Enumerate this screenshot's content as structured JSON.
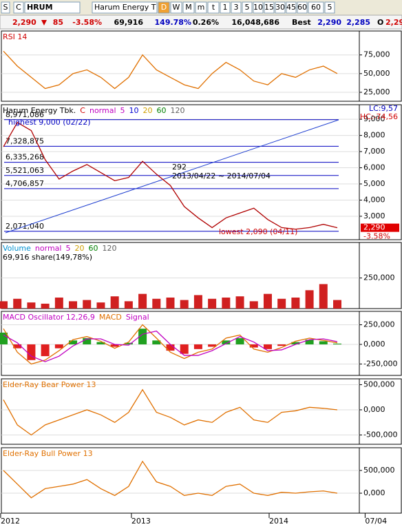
{
  "toolbar": {
    "prefix": "S",
    "market": "C",
    "symbol": "HRUM",
    "name": "Harum Energy T",
    "periods": [
      "D",
      "W",
      "M",
      "m",
      "t",
      "1",
      "3",
      "5",
      "10",
      "15",
      "30",
      "45",
      "60"
    ],
    "period_select": "60",
    "extra": "5"
  },
  "quote": {
    "price": "2,290",
    "change": "85",
    "change_pct": "-3.58%",
    "volume": "69,916",
    "volume_pct": "149.78%",
    "ratio": "0.26%",
    "amount": "16,048,686",
    "best_label": "Best",
    "bid": "2,290",
    "ask": "2,285",
    "open_label": "O",
    "open": "2,29"
  },
  "chart_data": {
    "type": "stock_panes",
    "x_ticks": [
      {
        "value": -0.2,
        "label": "2012"
      },
      {
        "value": 9.2,
        "label": "2013"
      },
      {
        "value": 19.1,
        "label": "2014"
      },
      {
        "value": 26,
        "label": "07/04"
      }
    ],
    "panes": [
      {
        "legend": [
          {
            "text": "RSI 14",
            "color": "#d00000"
          }
        ],
        "ylim": [
          13,
          107
        ],
        "yticks": [
          {
            "value": 75,
            "label": "75,000"
          },
          {
            "value": 50,
            "label": "50,000"
          },
          {
            "value": 25,
            "label": "25,000"
          }
        ],
        "series": [
          {
            "type": "line",
            "color": "#e07000",
            "values": [
              80,
              60,
              45,
              30,
              35,
              50,
              55,
              45,
              30,
              45,
              75,
              55,
              45,
              35,
              30,
              50,
              65,
              55,
              40,
              35,
              50,
              45,
              55,
              60,
              50
            ]
          }
        ]
      },
      {
        "legend": [
          {
            "text": "Harum Energy Tbk.",
            "color": "#000000"
          },
          {
            "text": "C",
            "color": "#d00000"
          },
          {
            "text": "normal",
            "color": "#c000c0"
          },
          {
            "text": "5",
            "color": "#c000c0"
          },
          {
            "text": "10",
            "color": "#0000d0"
          },
          {
            "text": "20",
            "color": "#d0a000"
          },
          {
            "text": "60",
            "color": "#008000"
          },
          {
            "text": "120",
            "color": "#606060"
          }
        ],
        "ylim": [
          1550,
          9900
        ],
        "yticks": [
          {
            "value": 9000,
            "label": "9,000"
          },
          {
            "value": 8000,
            "label": "8,000"
          },
          {
            "value": 7000,
            "label": "7,000"
          },
          {
            "value": 6000,
            "label": "6,000"
          },
          {
            "value": 5000,
            "label": "5,000"
          },
          {
            "value": 4000,
            "label": "4,000"
          },
          {
            "value": 3000,
            "label": "3,000"
          }
        ],
        "levels": [
          {
            "value": 8971.086,
            "label": "8,971,086"
          },
          {
            "value": 7328.875,
            "label": "7,328,875"
          },
          {
            "value": 6335.268,
            "label": "6,335,268"
          },
          {
            "value": 5521.063,
            "label": "5,521,063"
          },
          {
            "value": 4706.857,
            "label": "4,706,857"
          },
          {
            "value": 2071.04,
            "label": "2,071,040"
          }
        ],
        "annotations": [
          "highest 9,000 (02/22)",
          "lowest 2,090 (04/11)",
          "292",
          "2013/04/22 ~ 2014/07/04",
          "LC:9,57",
          "HC:-74,56"
        ],
        "last_tag": [
          "2,290",
          "-3.58%"
        ],
        "series": [
          {
            "type": "line",
            "color": "#b00000",
            "values": [
              7300,
              8800,
              8300,
              6500,
              5300,
              5800,
              6200,
              5700,
              5200,
              5400,
              6400,
              5600,
              4900,
              3600,
              2900,
              2300,
              2900,
              3200,
              3500,
              2800,
              2300,
              2200,
              2300,
              2500,
              2290
            ]
          }
        ]
      },
      {
        "legend": [
          {
            "text": "Volume",
            "color": "#0090d0"
          },
          {
            "text": "normal",
            "color": "#c000c0"
          },
          {
            "text": "5",
            "color": "#c000c0"
          },
          {
            "text": "20",
            "color": "#d0a000"
          },
          {
            "text": "60",
            "color": "#008000"
          },
          {
            "text": "120",
            "color": "#606060"
          }
        ],
        "sub": "69,916 share(149,78%)",
        "ylim": [
          0,
          540000
        ],
        "yticks": [
          {
            "value": 250000,
            "label": "250,000"
          }
        ],
        "series": [
          {
            "type": "bar",
            "color": "#d02020",
            "values": [
              60000,
              80000,
              50000,
              40000,
              90000,
              60000,
              70000,
              50000,
              100000,
              60000,
              120000,
              80000,
              90000,
              70000,
              110000,
              80000,
              90000,
              100000,
              60000,
              120000,
              80000,
              90000,
              150000,
              200000,
              69916
            ]
          }
        ]
      },
      {
        "legend": [
          {
            "text": "MACD Oscillator 12,26,9",
            "color": "#c000c0"
          },
          {
            "text": "MACD",
            "color": "#e07000"
          },
          {
            "text": "Signal",
            "color": "#c000c0"
          }
        ],
        "ylim": [
          -395000,
          421000
        ],
        "yticks": [
          {
            "value": 250000,
            "label": "250,000"
          },
          {
            "value": 0,
            "label": "0,000"
          },
          {
            "value": -250000,
            "label": "-250,000"
          }
        ],
        "series": [
          {
            "type": "signbar",
            "color": "#20a020",
            "neg_color": "#e02020",
            "values": [
              150000,
              -50000,
              -200000,
              -150000,
              -50000,
              50000,
              80000,
              30000,
              -30000,
              20000,
              200000,
              50000,
              -80000,
              -120000,
              -60000,
              -30000,
              50000,
              80000,
              -40000,
              -60000,
              -20000,
              30000,
              60000,
              40000,
              10000
            ]
          },
          {
            "type": "line",
            "color": "#e07000",
            "values": [
              200000,
              -100000,
              -250000,
              -200000,
              -80000,
              60000,
              100000,
              40000,
              -50000,
              30000,
              250000,
              80000,
              -100000,
              -180000,
              -100000,
              -60000,
              80000,
              120000,
              -60000,
              -100000,
              -40000,
              40000,
              80000,
              50000,
              20000
            ]
          },
          {
            "type": "line",
            "color": "#c000c0",
            "values": [
              120000,
              20000,
              -150000,
              -220000,
              -150000,
              -20000,
              70000,
              70000,
              0,
              -10000,
              130000,
              170000,
              0,
              -140000,
              -140000,
              -80000,
              10000,
              100000,
              30000,
              -80000,
              -70000,
              0,
              60000,
              70000,
              35000
            ]
          }
        ]
      },
      {
        "legend": [
          {
            "text": "Elder-Ray Bear Power 13",
            "color": "#e07000"
          }
        ],
        "ylim": [
          -685000,
          616000
        ],
        "yticks": [
          {
            "value": 500000,
            "label": "500,000"
          },
          {
            "value": 0,
            "label": "0,000"
          },
          {
            "value": -500000,
            "label": "-500,000"
          }
        ],
        "series": [
          {
            "type": "line",
            "color": "#e07000",
            "values": [
              200000,
              -300000,
              -500000,
              -300000,
              -200000,
              -100000,
              0,
              -100000,
              -250000,
              -50000,
              400000,
              -50000,
              -150000,
              -300000,
              -200000,
              -250000,
              -50000,
              50000,
              -200000,
              -250000,
              -50000,
              -20000,
              50000,
              30000,
              0
            ]
          }
        ]
      },
      {
        "legend": [
          {
            "text": "Elder-Ray Bull Power 13",
            "color": "#e07000"
          }
        ],
        "ylim": [
          -439000,
          1000000
        ],
        "yticks": [
          {
            "value": 500000,
            "label": "500,000"
          },
          {
            "value": 0,
            "label": "0,000"
          }
        ],
        "series": [
          {
            "type": "line",
            "color": "#e07000",
            "values": [
              500000,
              200000,
              -100000,
              100000,
              150000,
              200000,
              300000,
              100000,
              -50000,
              150000,
              700000,
              250000,
              150000,
              -50000,
              0,
              -50000,
              150000,
              200000,
              0,
              -50000,
              20000,
              0,
              30000,
              50000,
              0
            ]
          }
        ]
      }
    ]
  }
}
